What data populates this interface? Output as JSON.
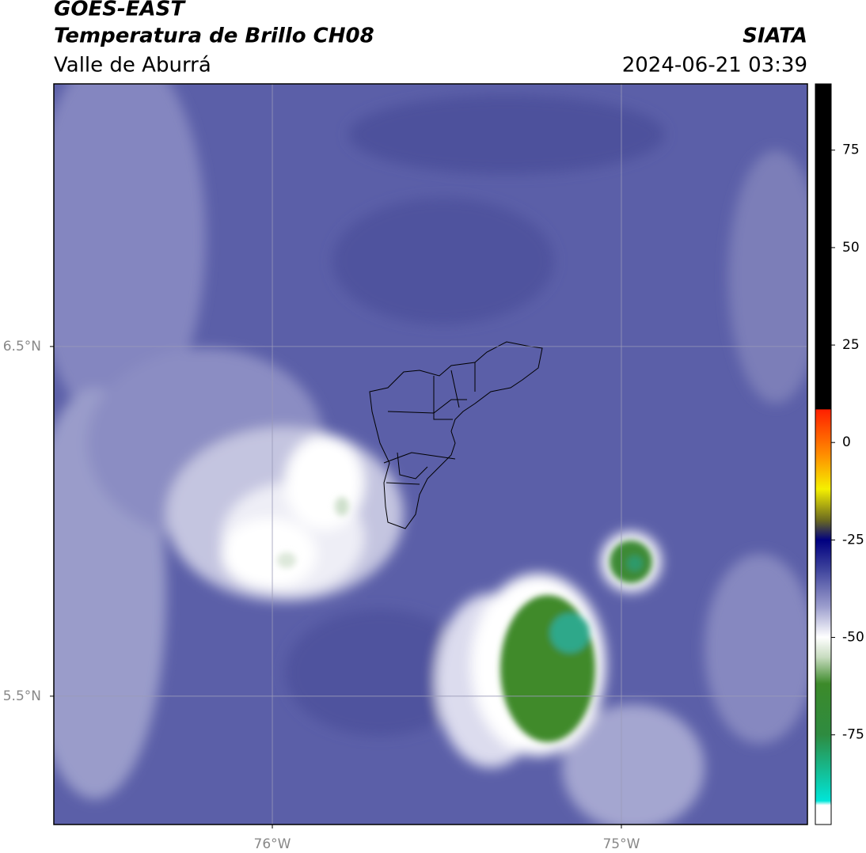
{
  "header": {
    "title": "GOES-EAST",
    "subtitle": "Temperatura de Brillo CH08",
    "region": "Valle de Aburrá",
    "source": "SIATA",
    "timestamp": "2024-06-21 03:39"
  },
  "map": {
    "xlim": [
      -76.626,
      -74.467
    ],
    "ylim": [
      5.133,
      7.251
    ],
    "xticks": [
      {
        "value": -76,
        "label": "76°W"
      },
      {
        "value": -75,
        "label": "75°W"
      }
    ],
    "yticks": [
      {
        "value": 6.5,
        "label": "6.5°N"
      },
      {
        "value": 5.5,
        "label": "5.5°N"
      }
    ],
    "grid": true,
    "colorbar": {
      "lim": [
        -98,
        92
      ],
      "ticks": [
        75,
        50,
        25,
        0,
        -25,
        -50,
        -75
      ]
    }
  }
}
